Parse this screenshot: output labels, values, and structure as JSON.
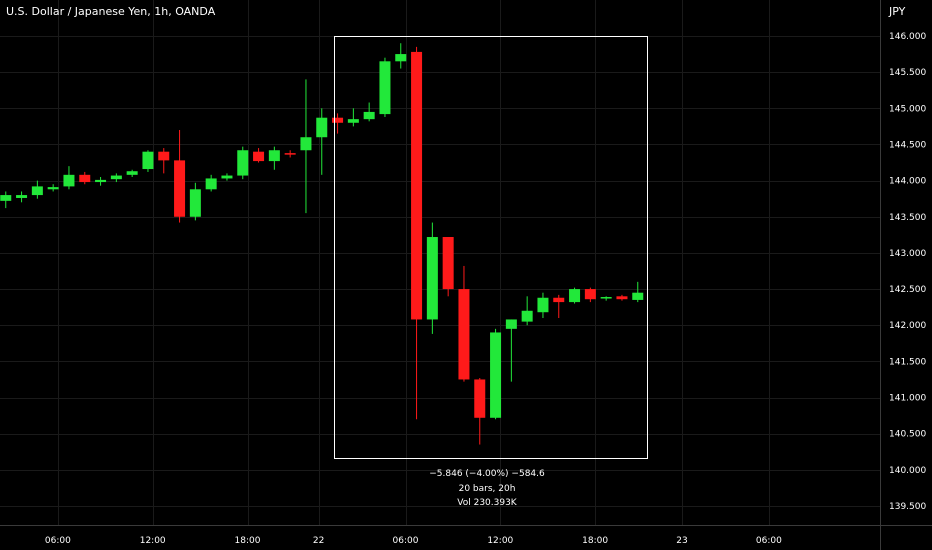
{
  "chart_data": {
    "type": "candlestick",
    "title": "U.S. Dollar / Japanese Yen, 1h, OANDA",
    "yaxis_unit": "JPY",
    "ylim": [
      139.37,
      146.26
    ],
    "y_ticks": [
      "146.000",
      "145.500",
      "145.000",
      "144.500",
      "144.000",
      "143.500",
      "143.000",
      "142.500",
      "142.000",
      "141.500",
      "141.000",
      "140.500",
      "140.000",
      "139.500"
    ],
    "x_ticks": [
      "06:00",
      "12:00",
      "18:00",
      "22",
      "06:00",
      "12:00",
      "18:00",
      "23",
      "06:00"
    ],
    "colors": {
      "up": "#22e83a",
      "down": "#ff1a1a",
      "background": "#000000",
      "grid": "#1a1a1a",
      "axis_line": "#3a3a3a"
    },
    "candles": [
      {
        "t": -0.3,
        "o": 143.72,
        "h": 143.85,
        "l": 143.62,
        "c": 143.8
      },
      {
        "t": 0.7,
        "o": 143.76,
        "h": 143.85,
        "l": 143.7,
        "c": 143.8
      },
      {
        "t": 1.7,
        "o": 143.8,
        "h": 144.0,
        "l": 143.75,
        "c": 143.92
      },
      {
        "t": 2.7,
        "o": 143.88,
        "h": 143.95,
        "l": 143.85,
        "c": 143.91
      },
      {
        "t": 3.7,
        "o": 143.92,
        "h": 144.2,
        "l": 143.88,
        "c": 144.08
      },
      {
        "t": 4.7,
        "o": 144.08,
        "h": 144.12,
        "l": 143.95,
        "c": 143.98
      },
      {
        "t": 5.7,
        "o": 143.98,
        "h": 144.05,
        "l": 143.93,
        "c": 144.01
      },
      {
        "t": 6.7,
        "o": 144.02,
        "h": 144.1,
        "l": 143.98,
        "c": 144.07
      },
      {
        "t": 7.7,
        "o": 144.08,
        "h": 144.15,
        "l": 144.05,
        "c": 144.13
      },
      {
        "t": 8.7,
        "o": 144.16,
        "h": 144.42,
        "l": 144.12,
        "c": 144.4
      },
      {
        "t": 9.7,
        "o": 144.4,
        "h": 144.45,
        "l": 144.1,
        "c": 144.28
      },
      {
        "t": 10.7,
        "o": 144.28,
        "h": 144.7,
        "l": 143.42,
        "c": 143.5
      },
      {
        "t": 11.7,
        "o": 143.5,
        "h": 143.97,
        "l": 143.45,
        "c": 143.88
      },
      {
        "t": 12.7,
        "o": 143.88,
        "h": 144.08,
        "l": 143.85,
        "c": 144.03
      },
      {
        "t": 13.7,
        "o": 144.03,
        "h": 144.1,
        "l": 144.0,
        "c": 144.07
      },
      {
        "t": 14.7,
        "o": 144.07,
        "h": 144.47,
        "l": 144.02,
        "c": 144.42
      },
      {
        "t": 15.7,
        "o": 144.4,
        "h": 144.45,
        "l": 144.25,
        "c": 144.27
      },
      {
        "t": 16.7,
        "o": 144.27,
        "h": 144.47,
        "l": 144.15,
        "c": 144.42
      },
      {
        "t": 17.7,
        "o": 144.38,
        "h": 144.42,
        "l": 144.32,
        "c": 144.36
      },
      {
        "t": 18.7,
        "o": 144.42,
        "h": 145.4,
        "l": 143.55,
        "c": 144.6
      },
      {
        "t": 19.7,
        "o": 144.6,
        "h": 145.0,
        "l": 144.08,
        "c": 144.87
      },
      {
        "t": 20.7,
        "o": 144.87,
        "h": 144.93,
        "l": 144.65,
        "c": 144.8
      },
      {
        "t": 21.7,
        "o": 144.8,
        "h": 145.0,
        "l": 144.75,
        "c": 144.85
      },
      {
        "t": 22.7,
        "o": 144.85,
        "h": 145.08,
        "l": 144.82,
        "c": 144.95
      },
      {
        "t": 23.7,
        "o": 144.92,
        "h": 145.7,
        "l": 144.88,
        "c": 145.65
      },
      {
        "t": 24.7,
        "o": 145.65,
        "h": 145.9,
        "l": 145.55,
        "c": 145.75
      },
      {
        "t": 25.7,
        "o": 145.78,
        "h": 145.85,
        "l": 140.7,
        "c": 142.08
      },
      {
        "t": 26.7,
        "o": 142.08,
        "h": 143.42,
        "l": 141.88,
        "c": 143.22
      },
      {
        "t": 27.7,
        "o": 143.22,
        "h": 143.22,
        "l": 142.4,
        "c": 142.5
      },
      {
        "t": 28.7,
        "o": 142.5,
        "h": 142.82,
        "l": 141.22,
        "c": 141.25
      },
      {
        "t": 29.7,
        "o": 141.25,
        "h": 141.27,
        "l": 140.35,
        "c": 140.72
      },
      {
        "t": 30.7,
        "o": 140.72,
        "h": 141.95,
        "l": 140.7,
        "c": 141.9
      },
      {
        "t": 31.7,
        "o": 141.95,
        "h": 142.08,
        "l": 141.22,
        "c": 142.08
      },
      {
        "t": 32.7,
        "o": 142.05,
        "h": 142.4,
        "l": 142.0,
        "c": 142.2
      },
      {
        "t": 33.7,
        "o": 142.18,
        "h": 142.45,
        "l": 142.1,
        "c": 142.38
      },
      {
        "t": 34.7,
        "o": 142.38,
        "h": 142.42,
        "l": 142.1,
        "c": 142.32
      },
      {
        "t": 35.7,
        "o": 142.32,
        "h": 142.52,
        "l": 142.3,
        "c": 142.5
      },
      {
        "t": 36.7,
        "o": 142.5,
        "h": 142.52,
        "l": 142.32,
        "c": 142.36
      },
      {
        "t": 37.7,
        "o": 142.37,
        "h": 142.4,
        "l": 142.34,
        "c": 142.39
      },
      {
        "t": 38.7,
        "o": 142.4,
        "h": 142.42,
        "l": 142.34,
        "c": 142.36
      },
      {
        "t": 39.7,
        "o": 142.35,
        "h": 142.6,
        "l": 142.32,
        "c": 142.45
      }
    ],
    "measurement": {
      "line1": "−5.846 (−4.00%) −584.6",
      "line2": "20 bars, 20h",
      "line3": "Vol 230.393K",
      "from_t": 20.5,
      "to_t": 40.3,
      "top_price": 146.0,
      "bottom_price": 140.17
    }
  }
}
